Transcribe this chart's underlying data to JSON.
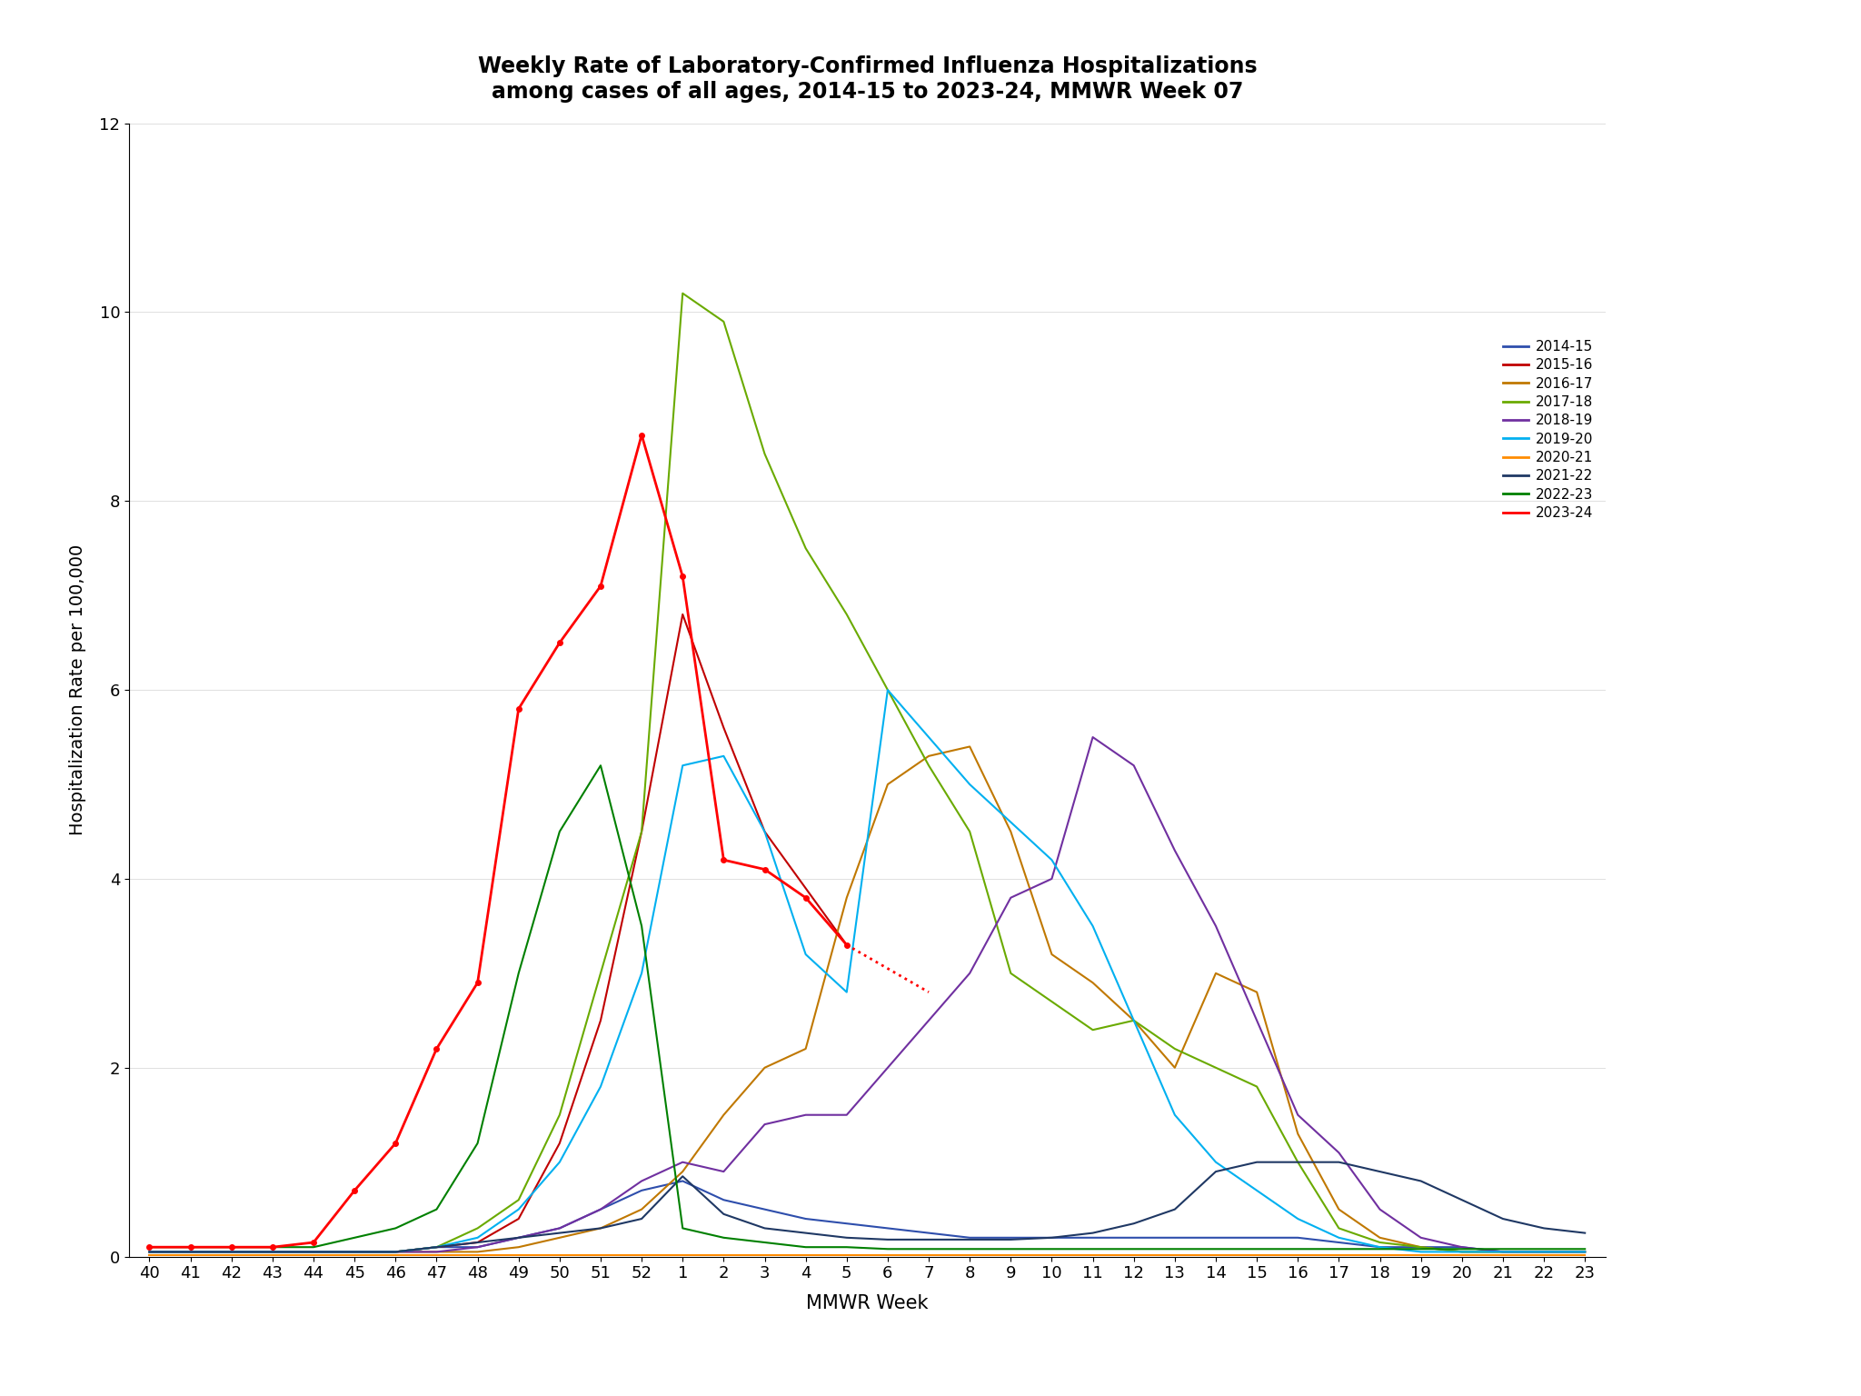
{
  "title": "Weekly Rate of Laboratory-Confirmed Influenza Hospitalizations\namong cases of all ages, 2014-15 to 2023-24, MMWR Week 07",
  "xlabel": "MMWR Week",
  "ylabel": "Hospitalization Rate per 100,000",
  "ylim": [
    0,
    12
  ],
  "yticks": [
    0,
    2,
    4,
    6,
    8,
    10,
    12
  ],
  "x_labels": [
    "40",
    "41",
    "42",
    "43",
    "44",
    "45",
    "46",
    "47",
    "48",
    "49",
    "50",
    "51",
    "52",
    "1",
    "2",
    "3",
    "4",
    "5",
    "6",
    "7",
    "8",
    "9",
    "10",
    "11",
    "12",
    "13",
    "14",
    "15",
    "16",
    "17",
    "18",
    "19",
    "20",
    "21",
    "22",
    "23"
  ],
  "seasons": {
    "2014-15": {
      "color": "#2E4EAC",
      "linewidth": 1.5,
      "data": [
        0.05,
        0.05,
        0.05,
        0.05,
        0.05,
        0.05,
        0.05,
        0.1,
        0.1,
        0.2,
        0.3,
        0.5,
        0.7,
        0.8,
        0.6,
        0.5,
        0.4,
        0.35,
        0.3,
        0.25,
        0.2,
        0.2,
        0.2,
        0.2,
        0.2,
        0.2,
        0.2,
        0.2,
        0.2,
        0.15,
        0.1,
        0.1,
        0.1,
        0.05,
        0.05,
        0.05
      ]
    },
    "2015-16": {
      "color": "#C00000",
      "linewidth": 1.5,
      "data": [
        0.05,
        0.05,
        0.05,
        0.05,
        0.05,
        0.05,
        0.05,
        0.1,
        0.15,
        0.4,
        1.2,
        2.5,
        4.5,
        6.8,
        5.6,
        4.5,
        3.9,
        3.3,
        null,
        null,
        null,
        null,
        null,
        null,
        null,
        null,
        null,
        null,
        null,
        null,
        null,
        null,
        null,
        null,
        null,
        null
      ]
    },
    "2016-17": {
      "color": "#C07800",
      "linewidth": 1.5,
      "data": [
        0.05,
        0.05,
        0.05,
        0.05,
        0.05,
        0.05,
        0.05,
        0.05,
        0.05,
        0.1,
        0.2,
        0.3,
        0.5,
        0.9,
        1.5,
        2.0,
        2.2,
        3.8,
        5.0,
        5.3,
        5.4,
        4.5,
        3.2,
        2.9,
        2.5,
        2.0,
        3.0,
        2.8,
        1.3,
        0.5,
        0.2,
        0.1,
        0.05,
        0.05,
        0.05,
        0.05
      ]
    },
    "2017-18": {
      "color": "#6AAA00",
      "linewidth": 1.5,
      "data": [
        0.05,
        0.05,
        0.05,
        0.05,
        0.05,
        0.05,
        0.05,
        0.1,
        0.3,
        0.6,
        1.5,
        3.0,
        4.5,
        10.2,
        9.9,
        8.5,
        7.5,
        6.8,
        6.0,
        5.2,
        4.5,
        3.0,
        2.7,
        2.4,
        2.5,
        2.2,
        2.0,
        1.8,
        1.0,
        0.3,
        0.15,
        0.1,
        0.05,
        0.05,
        0.05,
        0.05
      ]
    },
    "2018-19": {
      "color": "#7030A0",
      "linewidth": 1.5,
      "data": [
        0.05,
        0.05,
        0.05,
        0.05,
        0.05,
        0.05,
        0.05,
        0.05,
        0.1,
        0.2,
        0.3,
        0.5,
        0.8,
        1.0,
        0.9,
        1.4,
        1.5,
        1.5,
        2.0,
        2.5,
        3.0,
        3.8,
        4.0,
        5.5,
        5.2,
        4.3,
        3.5,
        2.5,
        1.5,
        1.1,
        0.5,
        0.2,
        0.1,
        0.05,
        0.05,
        0.05
      ]
    },
    "2019-20": {
      "color": "#00B0F0",
      "linewidth": 1.5,
      "data": [
        0.05,
        0.05,
        0.05,
        0.05,
        0.05,
        0.05,
        0.05,
        0.1,
        0.2,
        0.5,
        1.0,
        1.8,
        3.0,
        5.2,
        5.3,
        4.5,
        3.2,
        2.8,
        6.0,
        5.5,
        5.0,
        4.6,
        4.2,
        3.5,
        2.5,
        1.5,
        1.0,
        0.7,
        0.4,
        0.2,
        0.1,
        0.05,
        0.05,
        0.05,
        0.05,
        0.05
      ]
    },
    "2020-21": {
      "color": "#FF8C00",
      "linewidth": 1.5,
      "data": [
        0.02,
        0.02,
        0.02,
        0.02,
        0.02,
        0.02,
        0.02,
        0.02,
        0.02,
        0.02,
        0.02,
        0.02,
        0.02,
        0.02,
        0.02,
        0.02,
        0.02,
        0.02,
        0.02,
        0.02,
        0.02,
        0.02,
        0.02,
        0.02,
        0.02,
        0.02,
        0.02,
        0.02,
        0.02,
        0.02,
        0.02,
        0.02,
        0.02,
        0.02,
        0.02,
        0.02
      ]
    },
    "2021-22": {
      "color": "#1F3864",
      "linewidth": 1.5,
      "data": [
        0.05,
        0.05,
        0.05,
        0.05,
        0.05,
        0.05,
        0.05,
        0.1,
        0.15,
        0.2,
        0.25,
        0.3,
        0.4,
        0.85,
        0.45,
        0.3,
        0.25,
        0.2,
        0.18,
        0.18,
        0.18,
        0.18,
        0.2,
        0.25,
        0.35,
        0.5,
        0.9,
        1.0,
        1.0,
        1.0,
        0.9,
        0.8,
        0.6,
        0.4,
        0.3,
        0.25
      ]
    },
    "2022-23": {
      "color": "#008000",
      "linewidth": 1.5,
      "data": [
        0.1,
        0.1,
        0.1,
        0.1,
        0.1,
        0.2,
        0.3,
        0.5,
        1.2,
        3.0,
        4.5,
        5.2,
        3.5,
        0.3,
        0.2,
        0.15,
        0.1,
        0.1,
        0.08,
        0.08,
        0.08,
        0.08,
        0.08,
        0.08,
        0.08,
        0.08,
        0.08,
        0.08,
        0.08,
        0.08,
        0.08,
        0.08,
        0.08,
        0.08,
        0.08,
        0.08
      ]
    },
    "2023-24": {
      "color": "#FF0000",
      "linewidth": 2.0,
      "dotted_from_idx": 17,
      "data": [
        0.1,
        0.1,
        0.1,
        0.1,
        0.15,
        0.7,
        1.2,
        2.2,
        2.9,
        5.8,
        6.5,
        7.1,
        8.7,
        7.2,
        4.2,
        4.1,
        3.8,
        3.3,
        3.05,
        2.8,
        null,
        null,
        null,
        null,
        null,
        null,
        null,
        null,
        null,
        null,
        null,
        null,
        null,
        null,
        null,
        null
      ]
    }
  }
}
